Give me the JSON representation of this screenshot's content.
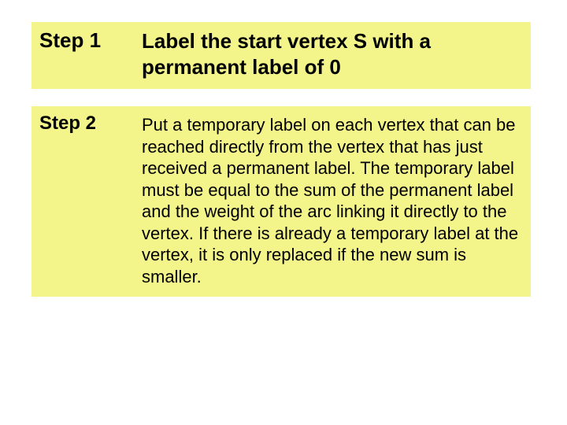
{
  "colors": {
    "background": "#ffffff",
    "block_bg": "#f3f48a",
    "text": "#000000"
  },
  "typography": {
    "font_family": "Comic Sans MS",
    "step1_label_fontsize": 26,
    "step1_desc_fontsize": 26,
    "step2_label_fontsize": 24,
    "step2_desc_fontsize": 22
  },
  "steps": [
    {
      "label": "Step 1",
      "description": "Label the start vertex S with a permanent label of 0"
    },
    {
      "label": "Step 2",
      "description": "Put a temporary label on each vertex that can be reached directly from the vertex that has just received a permanent label. The temporary label must be equal to the sum of the permanent label and the weight of the arc linking it directly to the vertex.  If there is already a temporary label at the vertex, it is only replaced if the new sum is smaller."
    }
  ]
}
